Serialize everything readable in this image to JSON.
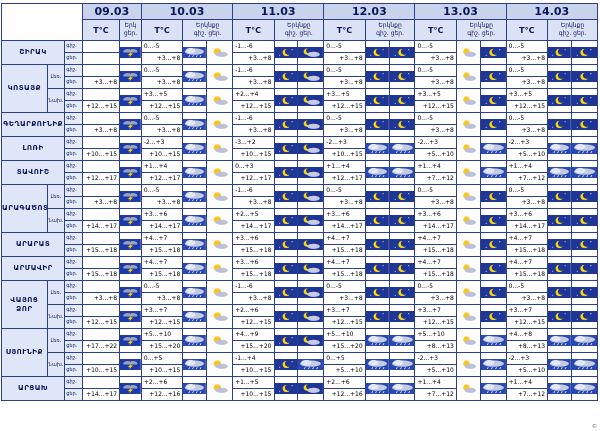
{
  "header": {
    "temp_label": "T°C",
    "weather_label": "Երկ",
    "day_label": "ցեր.",
    "night_label": "գիշ.",
    "weather_label_full": "Երկնքը"
  },
  "days": [
    {
      "date": "09.03",
      "weather_label": "Երկ"
    },
    {
      "date": "10.03",
      "weather_label": "Երկնքը"
    },
    {
      "date": "11.03",
      "weather_label": "Երկնքը"
    },
    {
      "date": "12.03",
      "weather_label": "Երկնքը"
    },
    {
      "date": "13.03",
      "weather_label": "Երկնքը"
    },
    {
      "date": "14.03",
      "weather_label": "Երկնքը"
    }
  ],
  "row_labels": {
    "night": "գիշ.",
    "day": "ցեր.",
    "low": "Լեռ.",
    "valley": "Նախ."
  },
  "icon_legend": {
    "T": "thunderstorm",
    "C": "cloud-rain",
    "S": "sun-cloud",
    "M": "moon",
    "m": "moon-cloud",
    "D": "day-sun"
  },
  "regions": [
    {
      "name": "ՇԻՐԱԿ",
      "rows": [
        {
          "sub": "",
          "night": "",
          "day": "+3...+8",
          "t": [
            "",
            "0...-5",
            "-1...-6",
            "0...-5",
            "0...-5",
            "0...-5",
            "",
            "+3...+8",
            "+3...+8",
            "+3...+8",
            "+3...+8",
            "+3...+8"
          ],
          "i": [
            "T",
            "C",
            "S",
            "M",
            "m",
            "M",
            "M",
            "S",
            "M",
            "M",
            "M",
            "D"
          ]
        }
      ]
    },
    {
      "name": "ԿՈՏԱՅՔ",
      "rows": [
        {
          "sub": "Լեռ.",
          "t": [
            "",
            "0...-5",
            "-1...-6",
            "0...-5",
            "0...-5",
            "0...-5",
            "+3...+8",
            "+3...+8",
            "+3...+8",
            "+3...+8",
            "+3...+8",
            "+3...+8"
          ],
          "i": [
            "T",
            "C",
            "S",
            "M",
            "m",
            "M",
            "M",
            "S",
            "M",
            "M",
            "M",
            "D"
          ]
        },
        {
          "sub": "Նախ.",
          "t": [
            "",
            "+3...+5",
            "+2...+4",
            "+3...+5",
            "+3...+5",
            "+3...+5",
            "+12...+15",
            "+12...+15",
            "+12...+15",
            "+12...+15",
            "+12...+15",
            "+12...+15"
          ],
          "i": [
            "T",
            "C",
            "S",
            "M",
            "m",
            "M",
            "M",
            "S",
            "M",
            "M",
            "M",
            "D"
          ]
        }
      ]
    },
    {
      "name": "ԳԵՂԱՐՔՈՒՆԻՔ",
      "rows": [
        {
          "sub": "",
          "t": [
            "",
            "0...-5",
            "-1...-6",
            "0...-5",
            "0...-5",
            "0...-5",
            "+3...+8",
            "+3...+8",
            "+3...+8",
            "+3...+8",
            "+3...+8",
            "+3...+8"
          ],
          "i": [
            "T",
            "C",
            "S",
            "M",
            "m",
            "M",
            "M",
            "S",
            "M",
            "M",
            "M",
            "D"
          ]
        }
      ]
    },
    {
      "name": "ԼՈՌԻ",
      "rows": [
        {
          "sub": "",
          "t": [
            "",
            "-2...+3",
            "-3...+2",
            "-2...+3",
            "-2...+3",
            "-2...+3",
            "+10...+15",
            "+10...+15",
            "+10...+15",
            "+10...+15",
            "+5...+10",
            "+5...+10"
          ],
          "i": [
            "T",
            "C",
            "S",
            "M",
            "m",
            "C",
            "C",
            "S",
            "C",
            "C",
            "C",
            "C"
          ]
        }
      ]
    },
    {
      "name": "ՏԱՎՈՒՇ",
      "rows": [
        {
          "sub": "",
          "t": [
            "",
            "+1...+4",
            "0...+3",
            "+1...+4",
            "+1...+4",
            "+1...+4",
            "+12...+17",
            "+12...+17",
            "+12...+17",
            "+12...+17",
            "+7...+12",
            "+7...+12"
          ],
          "i": [
            "T",
            "C",
            "S",
            "M",
            "m",
            "C",
            "C",
            "S",
            "C",
            "C",
            "C",
            "C"
          ]
        }
      ]
    },
    {
      "name": "ԱՐԱԳԱԾՈՏՆ",
      "rows": [
        {
          "sub": "Լեռ.",
          "t": [
            "",
            "0...-5",
            "-1...-6",
            "0...-5",
            "0...-5",
            "0...-5",
            "+3...+8",
            "+3...+8",
            "+3...+8",
            "+3...+8",
            "+3...+8",
            "+3...+8"
          ],
          "i": [
            "T",
            "C",
            "S",
            "M",
            "m",
            "M",
            "M",
            "S",
            "M",
            "M",
            "M",
            "D"
          ]
        },
        {
          "sub": "Նախ.",
          "t": [
            "",
            "+3...+6",
            "+2...+5",
            "+3...+6",
            "+3...+6",
            "+3...+6",
            "+14...+17",
            "+14...+17",
            "+14...+17",
            "+14...+17",
            "+14...+17",
            "+14...+17"
          ],
          "i": [
            "T",
            "C",
            "S",
            "M",
            "m",
            "M",
            "M",
            "S",
            "M",
            "M",
            "M",
            "D"
          ]
        }
      ]
    },
    {
      "name": "ԱՐԱՐԱՏ",
      "rows": [
        {
          "sub": "",
          "t": [
            "",
            "+4...+7",
            "+3...+6",
            "+4...+7",
            "+4...+7",
            "+4...+7",
            "+15...+18",
            "+15...+18",
            "+15...+18",
            "+15...+18",
            "+15...+18",
            "+15...+18"
          ],
          "i": [
            "T",
            "C",
            "S",
            "M",
            "m",
            "M",
            "M",
            "S",
            "M",
            "M",
            "M",
            "D"
          ]
        }
      ]
    },
    {
      "name": "ԱՐՄԱՎԻՐ",
      "rows": [
        {
          "sub": "",
          "t": [
            "",
            "+4...+7",
            "+3...+6",
            "+4...+7",
            "+4...+7",
            "+4...+7",
            "+15...+18",
            "+15...+18",
            "+15...+18",
            "+15...+18",
            "+15...+18",
            "+15...+18"
          ],
          "i": [
            "T",
            "C",
            "S",
            "M",
            "m",
            "M",
            "M",
            "S",
            "M",
            "M",
            "M",
            "D"
          ]
        }
      ]
    },
    {
      "name": "ՎԱՅՈՑ ՁՈՐ",
      "rows": [
        {
          "sub": "Լեռ.",
          "t": [
            "",
            "0...-5",
            "-1...-6",
            "0...-5",
            "0...-5",
            "0...-5",
            "+3...+8",
            "+3...+8",
            "+3...+8",
            "+3...+8",
            "+3...+8",
            "+3...+8"
          ],
          "i": [
            "T",
            "C",
            "S",
            "M",
            "m",
            "M",
            "M",
            "S",
            "M",
            "M",
            "M",
            "D"
          ]
        },
        {
          "sub": "Նախ.",
          "t": [
            "",
            "+3...+7",
            "+2...+6",
            "+3...+7",
            "+3...+7",
            "+3...+7",
            "+12...+15",
            "+12...+15",
            "+12...+15",
            "+12...+15",
            "+12...+15",
            "+12...+15"
          ],
          "i": [
            "T",
            "C",
            "S",
            "M",
            "m",
            "M",
            "M",
            "S",
            "M",
            "M",
            "M",
            "D"
          ]
        }
      ]
    },
    {
      "name": "ՍՅՈՒՆԻՔ",
      "rows": [
        {
          "sub": "Լեռ.",
          "t": [
            "",
            "+5...+10",
            "+4...+9",
            "+5...+10",
            "+5...+10",
            "+4...+8",
            "+17...+22",
            "+15...+20",
            "+15...+20",
            "+15...+20",
            "+8...+13",
            "+8...+13"
          ],
          "i": [
            "T",
            "C",
            "S",
            "M",
            "m",
            "C",
            "C",
            "S",
            "C",
            "C",
            "C",
            "C"
          ]
        },
        {
          "sub": "Նախ.",
          "t": [
            "",
            "0...+5",
            "-1...+4",
            "0...+5",
            "-2...+3",
            "-2...+3",
            "+10...+15",
            "+10...+15",
            "+10...+15",
            "+5...+10",
            "+5...+10",
            "+5...+10"
          ],
          "i": [
            "T",
            "C",
            "S",
            "M",
            "C",
            "C",
            "C",
            "S",
            "C",
            "C",
            "C",
            "C"
          ]
        }
      ]
    },
    {
      "name": "ԱՐՑԱԽ",
      "rows": [
        {
          "sub": "",
          "t": [
            "",
            "+2...+6",
            "+1...+5",
            "+2...+6",
            "+1...+4",
            "+1...+4",
            "+14...+17",
            "+12...+16",
            "+10...+15",
            "+12...+16",
            "+7...+12",
            "+7...+12"
          ],
          "i": [
            "T",
            "C",
            "S",
            "M",
            "m",
            "C",
            "C",
            "S",
            "C",
            "C",
            "C",
            "C"
          ]
        }
      ]
    }
  ],
  "footer": {
    "mark": "©"
  }
}
